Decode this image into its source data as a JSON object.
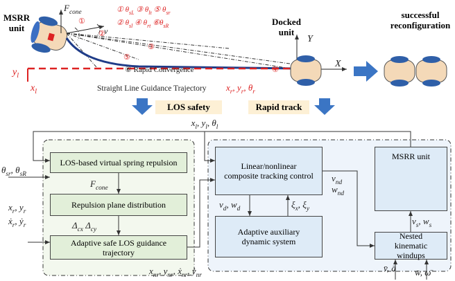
{
  "top": {
    "msrr_label": "MSRR unit",
    "f_cone": [
      [
        "F",
        "cone"
      ]
    ],
    "legend": [
      [
        [
          "① θ",
          "sL"
        ],
        [
          " ③ θ",
          "lt"
        ],
        [
          " ⑤ θ",
          "sr"
        ]
      ],
      [
        [
          "② θ",
          "sl"
        ],
        [
          " ④ θ",
          "rt"
        ],
        [
          " ⑥θ",
          "sR"
        ]
      ]
    ],
    "v": "v",
    "line_numbers": [
      "①",
      "②",
      "③",
      "④",
      "⑤"
    ],
    "rapid": "⑥ Rapid Convergence",
    "y_l": [
      [
        "y",
        "l"
      ]
    ],
    "x_l": [
      [
        "x",
        "l"
      ]
    ],
    "trajectory": "Straight Line Guidance Trajectory",
    "x_r": [
      [
        "x",
        "r"
      ],
      [
        ", y",
        "r"
      ],
      [
        ", θ",
        "r"
      ]
    ],
    "docked": "Docked unit",
    "axis_y": "Y",
    "axis_x": "X",
    "success": "successful reconfiguration"
  },
  "stages": [
    "LOS safety",
    "Rapid track"
  ],
  "feedback": [
    [
      "x",
      "l"
    ],
    [
      ", y",
      "l"
    ],
    [
      ", θ",
      "l"
    ]
  ],
  "left_panel": {
    "spring": "LOS-based virtual spring repulsion",
    "f_cone": [
      [
        "F",
        "cone"
      ]
    ],
    "plane": "Repulsion plane distribution",
    "delta": [
      [
        "Δ",
        "cx"
      ],
      [
        "  Δ",
        "cy"
      ]
    ],
    "guidance": "Adaptive safe LOS guidance trajectory",
    "in_theta": [
      [
        "θ",
        "sr"
      ],
      [
        ", θ",
        "sR"
      ]
    ],
    "in_pos": [
      [
        "x",
        "r"
      ],
      [
        ", y",
        "r"
      ]
    ],
    "in_vel": [
      [
        "ẋ",
        "r"
      ],
      [
        ", ẏ",
        "r"
      ]
    ],
    "output": [
      [
        "x",
        "nr"
      ],
      [
        ", y",
        "nr"
      ],
      [
        ", ẋ",
        "nr"
      ],
      [
        ", ẏ",
        "nr"
      ]
    ]
  },
  "right_panel": {
    "tracking": "Linear/nonlinear composite tracking control",
    "v_nd": [
      [
        "v",
        "nd"
      ]
    ],
    "w_nd": [
      [
        "w",
        "nd"
      ]
    ],
    "vd_wd": [
      [
        "v",
        "d"
      ],
      [
        ", w",
        "d"
      ]
    ],
    "xi": [
      [
        "ξ",
        "x"
      ],
      [
        ", ξ",
        "y"
      ]
    ],
    "auxiliary": "Adaptive auxiliary dynamic system",
    "msrr": "MSRR unit",
    "vs_ws": [
      [
        "v",
        "s"
      ],
      [
        ", w",
        "s"
      ]
    ],
    "windups": "Nested kinematic windups",
    "in_va": [
      [
        "v̄, ā"
      ]
    ],
    "in_ww": [
      [
        "w̄, ω̄"
      ]
    ]
  }
}
